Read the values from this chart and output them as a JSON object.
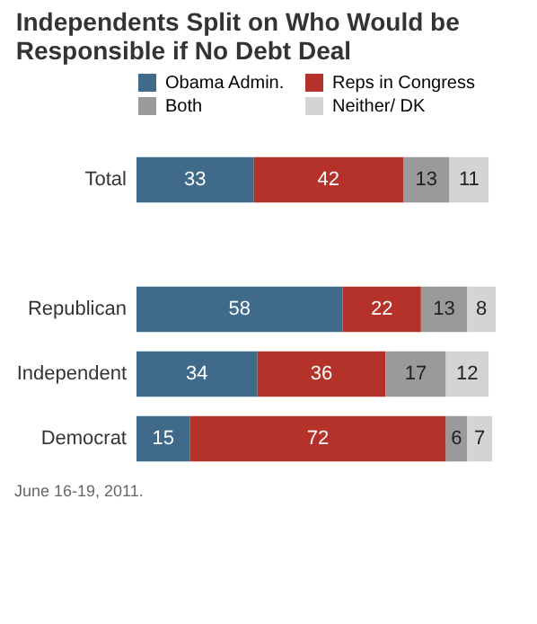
{
  "chart_data": {
    "type": "bar",
    "orientation": "horizontal",
    "stacked": true,
    "title": "Independents Split on Who Would be Responsible if No Debt Deal",
    "categories": [
      "Total",
      null,
      "Republican",
      "Independent",
      "Democrat"
    ],
    "series": [
      {
        "name": "Obama Admin.",
        "color": "#3f6a8a",
        "values": [
          33,
          null,
          58,
          34,
          15
        ]
      },
      {
        "name": "Reps in Congress",
        "color": "#b5322a",
        "values": [
          42,
          null,
          22,
          36,
          72
        ]
      },
      {
        "name": "Both",
        "color": "#9a9a9a",
        "values": [
          13,
          null,
          13,
          17,
          6
        ]
      },
      {
        "name": "Neither/ DK",
        "color": "#d4d4d4",
        "values": [
          11,
          null,
          8,
          12,
          7
        ]
      }
    ],
    "data_labels": true,
    "legend": "top",
    "grid": false,
    "annotations": [
      "June 16-19, 2011."
    ]
  }
}
